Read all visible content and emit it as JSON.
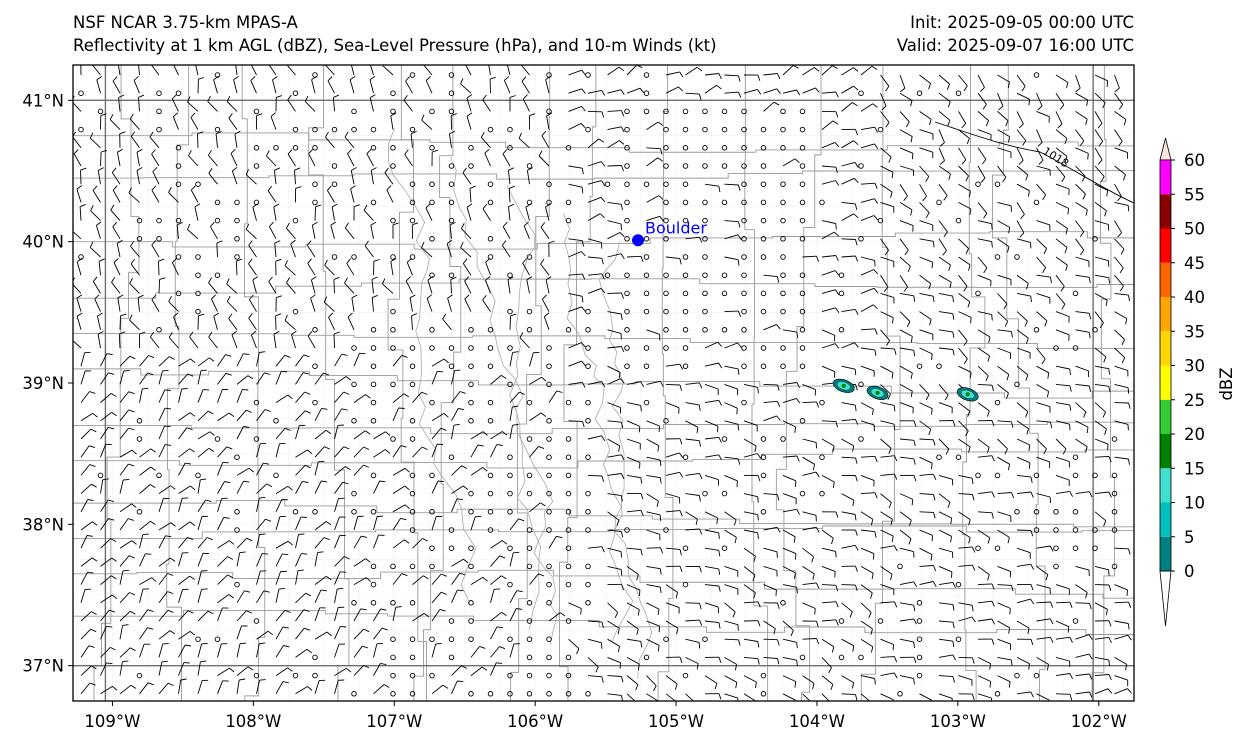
{
  "title": {
    "model": "NSF NCAR 3.75-km MPAS-A",
    "fields": "Reflectivity at 1 km AGL (dBZ), Sea-Level Pressure (hPa), and 10-m Winds (kt)",
    "init": "Init: 2025-09-05 00:00 UTC",
    "valid": "Valid: 2025-09-07 16:00 UTC"
  },
  "map": {
    "lon_range": [
      -109.28,
      -101.75
    ],
    "lat_range": [
      36.75,
      41.25
    ],
    "lon_ticks": [
      {
        "value": -109,
        "label": "109°W"
      },
      {
        "value": -108,
        "label": "108°W"
      },
      {
        "value": -107,
        "label": "107°W"
      },
      {
        "value": -106,
        "label": "106°W"
      },
      {
        "value": -105,
        "label": "105°W"
      },
      {
        "value": -104,
        "label": "104°W"
      },
      {
        "value": -103,
        "label": "103°W"
      },
      {
        "value": -102,
        "label": "102°W"
      }
    ],
    "lat_ticks": [
      {
        "value": 41,
        "label": "41°N"
      },
      {
        "value": 40,
        "label": "40°N"
      },
      {
        "value": 39,
        "label": "39°N"
      },
      {
        "value": 38,
        "label": "38°N"
      },
      {
        "value": 37,
        "label": "37°N"
      }
    ],
    "city": {
      "name": "Boulder",
      "lon": -105.27,
      "lat": 40.01,
      "color": "#0000ff"
    },
    "isobar_label": "1018",
    "reflectivity_cells": [
      {
        "lon": -103.81,
        "lat": 38.98
      },
      {
        "lon": -103.57,
        "lat": 38.93
      },
      {
        "lon": -102.93,
        "lat": 38.92
      }
    ]
  },
  "colorbar": {
    "label": "dBZ",
    "ticks": [
      "0",
      "5",
      "10",
      "15",
      "20",
      "25",
      "30",
      "35",
      "40",
      "45",
      "50",
      "55",
      "60"
    ],
    "colors": [
      "#008080",
      "#00c0c0",
      "#40e0d0",
      "#008000",
      "#32cd32",
      "#ffff00",
      "#ffd700",
      "#ffa500",
      "#ff6600",
      "#ff0000",
      "#8b0000",
      "#ff00ff",
      "#ffe4e1"
    ]
  }
}
